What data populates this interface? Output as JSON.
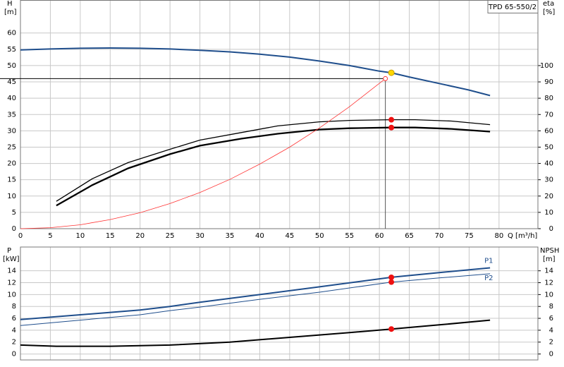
{
  "chart_data": [
    {
      "type": "line",
      "title": "TPD 65-550/2",
      "x_label": "Q [m³/h]",
      "y_label": "H",
      "y_unit": "[m]",
      "y2_label": "eta",
      "y2_unit": "[%]",
      "xlim": [
        0,
        86.5
      ],
      "xticks": [
        0,
        5,
        10,
        15,
        20,
        25,
        30,
        35,
        40,
        45,
        50,
        55,
        60,
        65,
        70,
        75,
        80
      ],
      "ylim": [
        0,
        70
      ],
      "yticks": [
        0,
        5,
        10,
        15,
        20,
        25,
        30,
        35,
        40,
        45,
        50,
        55,
        60
      ],
      "y2lim": [
        0,
        140
      ],
      "y2ticks": [
        0,
        10,
        20,
        30,
        40,
        50,
        60,
        70,
        80,
        90,
        100
      ],
      "grid": true,
      "series": [
        {
          "color": "#1f4e8c",
          "width": 2,
          "x": [
            0,
            5,
            10,
            15,
            20,
            25,
            30,
            35,
            40,
            45,
            50,
            55,
            60,
            62,
            65,
            70,
            75,
            78.5
          ],
          "values": [
            54.8,
            55.1,
            55.3,
            55.4,
            55.3,
            55.1,
            54.7,
            54.2,
            53.5,
            52.6,
            51.4,
            50.0,
            48.3,
            47.8,
            46.5,
            44.5,
            42.5,
            40.8
          ]
        },
        {
          "color": "#000000",
          "width": 1.3,
          "axis": "y2",
          "x": [
            6,
            12,
            18,
            25,
            30,
            37,
            43,
            50,
            55,
            62,
            66,
            72,
            78.5
          ],
          "values": [
            16.8,
            30.6,
            40.5,
            48.7,
            54.3,
            59,
            63,
            65.5,
            66.4,
            66.8,
            66.8,
            66,
            63.8
          ]
        },
        {
          "color": "#000000",
          "width": 2.3,
          "axis": "y2",
          "x": [
            6,
            12,
            18,
            25,
            30,
            37,
            43,
            50,
            55,
            62,
            66,
            72,
            78.5
          ],
          "values": [
            14.2,
            26.7,
            37,
            45.7,
            50.9,
            55.2,
            58.2,
            60.8,
            61.6,
            62,
            62,
            61.2,
            59.5
          ]
        },
        {
          "color": "#ff3333",
          "width": 0.8,
          "x": [
            0,
            5,
            10,
            15,
            20,
            25,
            30,
            35,
            40,
            45,
            50,
            55,
            61
          ],
          "values": [
            0,
            0.3,
            1.2,
            2.8,
            4.9,
            7.7,
            11.1,
            15.1,
            19.8,
            25.0,
            30.9,
            37.4,
            46
          ]
        }
      ],
      "duty_lines": {
        "x": 61,
        "y": 46
      },
      "markers": [
        {
          "x": 62,
          "y": 47.8,
          "color": "#ffd700"
        },
        {
          "x": 62,
          "y": 66.8,
          "color": "#ee1111",
          "axis": "y2"
        },
        {
          "x": 62,
          "y": 62,
          "color": "#ee1111",
          "axis": "y2"
        },
        {
          "x": 61,
          "y": 46,
          "color": "none"
        }
      ]
    },
    {
      "type": "line",
      "y_label": "P",
      "y_unit": "[kW]",
      "y2_label": "NPSH",
      "y2_unit": "[m]",
      "xlim": [
        0,
        86.5
      ],
      "xticks": [
        0,
        5,
        10,
        15,
        20,
        25,
        30,
        35,
        40,
        45,
        50,
        55,
        60,
        65,
        70,
        75,
        80
      ],
      "xtick_labels": false,
      "ylim": [
        -1,
        18
      ],
      "yticks": [
        0,
        2,
        4,
        6,
        8,
        10,
        12,
        14
      ],
      "y2lim": [
        -1,
        18
      ],
      "y2ticks": [
        0,
        2,
        4,
        6,
        8,
        10,
        12,
        14
      ],
      "grid": true,
      "series": [
        {
          "name": "P1",
          "color": "#1f4e8c",
          "width": 2,
          "x": [
            0,
            10,
            20,
            25,
            30,
            40,
            50,
            62,
            70,
            78.5
          ],
          "values": [
            5.8,
            6.6,
            7.4,
            8.0,
            8.7,
            10.0,
            11.3,
            12.9,
            13.7,
            14.5
          ]
        },
        {
          "name": "P2",
          "color": "#1f4e8c",
          "width": 1,
          "x": [
            0,
            10,
            20,
            25,
            30,
            40,
            50,
            62,
            70,
            78.5
          ],
          "values": [
            4.8,
            5.7,
            6.6,
            7.3,
            7.9,
            9.2,
            10.4,
            12.1,
            12.8,
            13.5
          ]
        },
        {
          "color": "#000000",
          "width": 2,
          "axis": "y2",
          "x": [
            0,
            6,
            15,
            25,
            35,
            45,
            55,
            62,
            70,
            78.5
          ],
          "values": [
            1.5,
            1.3,
            1.3,
            1.5,
            2.0,
            2.8,
            3.6,
            4.2,
            4.9,
            5.7
          ]
        }
      ],
      "markers": [
        {
          "x": 62,
          "y": 12.9,
          "color": "#ee1111"
        },
        {
          "x": 62,
          "y": 12.1,
          "color": "#ee1111"
        },
        {
          "x": 62,
          "y": 4.2,
          "color": "#ee1111",
          "axis": "y2"
        }
      ]
    }
  ]
}
